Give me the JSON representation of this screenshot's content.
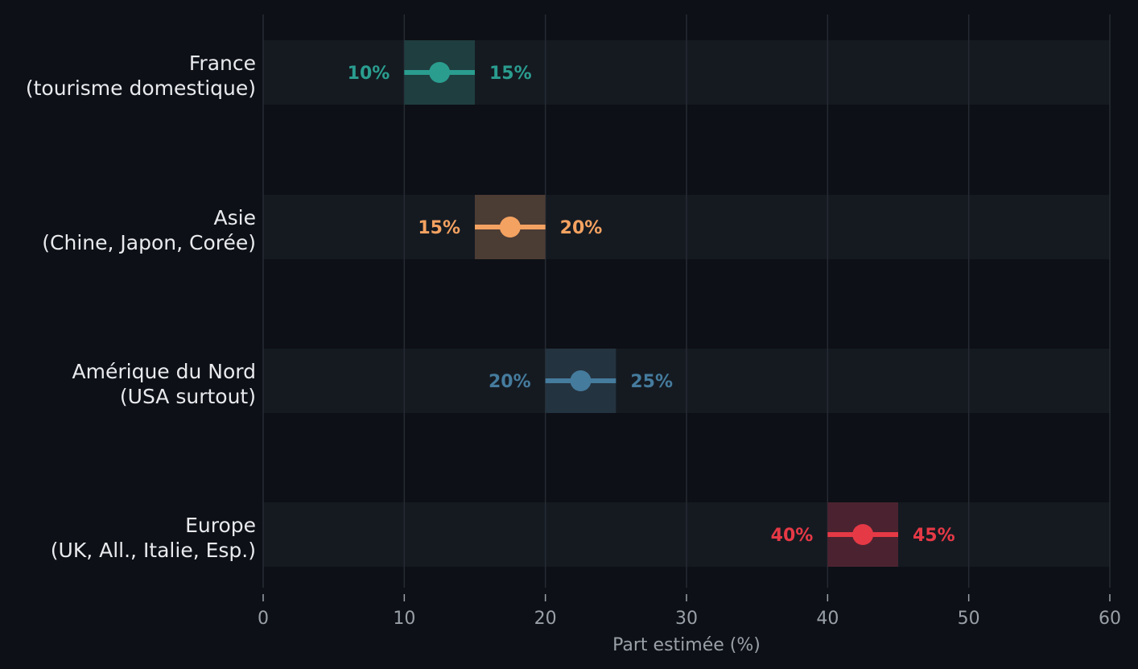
{
  "chart_data": {
    "type": "range",
    "title": "",
    "xlabel": "Part estimée (%)",
    "ylabel": "",
    "xlim": [
      0,
      60
    ],
    "xticks": [
      {
        "value": 0,
        "label": "0"
      },
      {
        "value": 10,
        "label": "10"
      },
      {
        "value": 20,
        "label": "20"
      },
      {
        "value": 30,
        "label": "30"
      },
      {
        "value": 40,
        "label": "40"
      },
      {
        "value": 50,
        "label": "50"
      },
      {
        "value": 60,
        "label": "60"
      }
    ],
    "grid": true,
    "categories": [
      {
        "line1": "France",
        "line2": "(tourisme domestique)",
        "low": 10,
        "high": 15,
        "mid": 12.5,
        "low_label": "10%",
        "high_label": "15%",
        "color": "#2a9d8f",
        "band_color": "#1f3e3f"
      },
      {
        "line1": "Asie",
        "line2": "(Chine, Japon, Corée)",
        "low": 15,
        "high": 20,
        "mid": 17.5,
        "low_label": "15%",
        "high_label": "20%",
        "color": "#f4a261",
        "band_color": "#4b3c34"
      },
      {
        "line1": "Amérique du Nord",
        "line2": "(USA surtout)",
        "low": 20,
        "high": 25,
        "mid": 22.5,
        "low_label": "20%",
        "high_label": "25%",
        "color": "#457b9d",
        "band_color": "#243340"
      },
      {
        "line1": "Europe",
        "line2": "(UK, All., Italie, Esp.)",
        "low": 40,
        "high": 45,
        "mid": 42.5,
        "low_label": "40%",
        "high_label": "45%",
        "color": "#e63946",
        "band_color": "#4b2330"
      }
    ]
  }
}
